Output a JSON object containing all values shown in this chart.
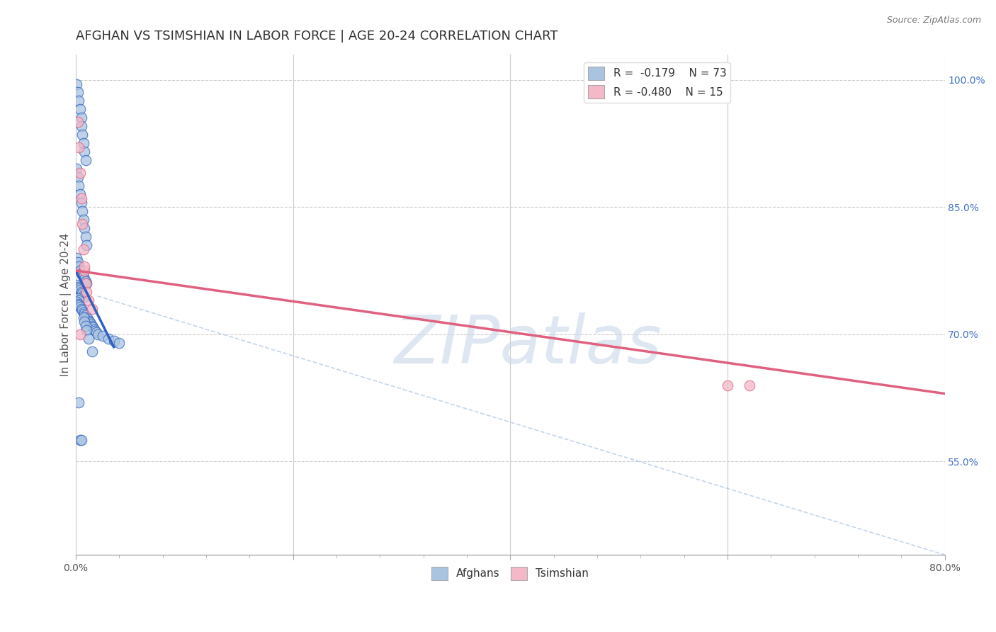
{
  "title": "AFGHAN VS TSIMSHIAN IN LABOR FORCE | AGE 20-24 CORRELATION CHART",
  "source_text": "Source: ZipAtlas.com",
  "xlabel": "",
  "ylabel": "In Labor Force | Age 20-24",
  "xlim": [
    0.0,
    0.8
  ],
  "ylim": [
    0.44,
    1.03
  ],
  "xticks": [
    0.0,
    0.2,
    0.4,
    0.6,
    0.8
  ],
  "xtick_labels": [
    "0.0%",
    "",
    "",
    "",
    "80.0%"
  ],
  "yticks": [
    0.55,
    0.7,
    0.85,
    1.0
  ],
  "ytick_labels": [
    "55.0%",
    "70.0%",
    "85.0%",
    "100.0%"
  ],
  "background_color": "#ffffff",
  "grid_color": "#cccccc",
  "blue_color": "#aac4e0",
  "pink_color": "#f4b8c8",
  "blue_line_color": "#3060c0",
  "pink_line_color": "#e06080",
  "dashed_line_color": "#aac4e0",
  "watermark_text": "ZIPatlas",
  "watermark_color": "#c8d8e8",
  "legend_r1": "R =  -0.179",
  "legend_n1": "N = 73",
  "legend_r2": "R = -0.480",
  "legend_n2": "N = 15",
  "title_fontsize": 13,
  "axis_label_fontsize": 11,
  "tick_fontsize": 10,
  "blue_scatter_x": [
    0.001,
    0.002,
    0.003,
    0.004,
    0.005,
    0.005,
    0.006,
    0.007,
    0.008,
    0.009,
    0.001,
    0.002,
    0.003,
    0.004,
    0.005,
    0.006,
    0.007,
    0.008,
    0.009,
    0.01,
    0.001,
    0.002,
    0.003,
    0.004,
    0.005,
    0.006,
    0.007,
    0.008,
    0.009,
    0.01,
    0.001,
    0.002,
    0.003,
    0.004,
    0.005,
    0.006,
    0.007,
    0.008,
    0.002,
    0.003,
    0.001,
    0.002,
    0.003,
    0.004,
    0.005,
    0.006,
    0.007,
    0.008,
    0.009,
    0.01,
    0.011,
    0.012,
    0.013,
    0.014,
    0.015,
    0.016,
    0.017,
    0.018,
    0.019,
    0.02,
    0.025,
    0.03,
    0.035,
    0.04,
    0.007,
    0.008,
    0.009,
    0.01,
    0.012,
    0.015,
    0.003,
    0.004,
    0.005
  ],
  "blue_scatter_y": [
    0.995,
    0.985,
    0.975,
    0.965,
    0.955,
    0.945,
    0.935,
    0.925,
    0.915,
    0.905,
    0.895,
    0.885,
    0.875,
    0.865,
    0.855,
    0.845,
    0.835,
    0.825,
    0.815,
    0.805,
    0.79,
    0.785,
    0.78,
    0.775,
    0.772,
    0.77,
    0.768,
    0.765,
    0.762,
    0.76,
    0.758,
    0.756,
    0.754,
    0.752,
    0.75,
    0.748,
    0.746,
    0.744,
    0.742,
    0.74,
    0.738,
    0.736,
    0.734,
    0.732,
    0.73,
    0.728,
    0.726,
    0.724,
    0.722,
    0.72,
    0.718,
    0.716,
    0.714,
    0.712,
    0.71,
    0.708,
    0.706,
    0.704,
    0.702,
    0.7,
    0.698,
    0.695,
    0.692,
    0.69,
    0.72,
    0.715,
    0.71,
    0.705,
    0.695,
    0.68,
    0.62,
    0.575,
    0.575
  ],
  "pink_scatter_x": [
    0.002,
    0.003,
    0.004,
    0.005,
    0.006,
    0.007,
    0.008,
    0.009,
    0.01,
    0.012,
    0.015,
    0.6,
    0.62,
    0.008,
    0.004
  ],
  "pink_scatter_y": [
    0.95,
    0.92,
    0.89,
    0.86,
    0.83,
    0.8,
    0.775,
    0.76,
    0.75,
    0.74,
    0.73,
    0.64,
    0.64,
    0.78,
    0.7
  ],
  "blue_line_x": [
    0.0,
    0.035
  ],
  "blue_line_y": [
    0.775,
    0.685
  ],
  "pink_line_x": [
    0.0,
    0.8
  ],
  "pink_line_y": [
    0.775,
    0.63
  ],
  "dashed_line_x": [
    0.02,
    0.8
  ],
  "dashed_line_y": [
    0.745,
    0.44
  ]
}
